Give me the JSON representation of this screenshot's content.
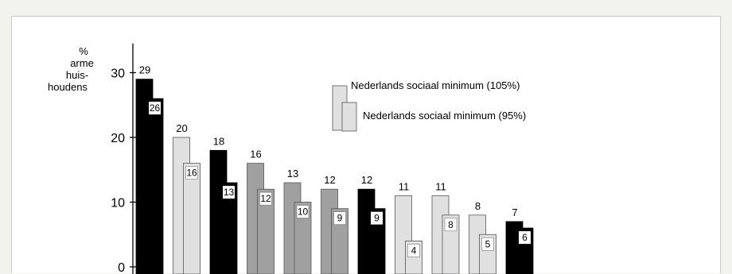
{
  "chart_data": {
    "type": "bar",
    "ylabel_lines": [
      "%",
      "arme",
      "huis-",
      "houdens"
    ],
    "yticks": [
      0,
      10,
      20,
      30
    ],
    "ylim": [
      0,
      35
    ],
    "grid": false,
    "legend_placement": "top-right",
    "series": [
      {
        "name": "Nederlands sociaal minimum (105%)",
        "values": [
          29,
          20,
          18,
          16,
          13,
          12,
          12,
          11,
          11,
          8,
          7
        ]
      },
      {
        "name": "Nederlands sociaal minimum (95%)",
        "values": [
          26,
          16,
          13,
          12,
          10,
          9,
          9,
          4,
          8,
          5,
          6
        ]
      }
    ],
    "group_colors": [
      "#000000",
      "#e0e0e0",
      "#000000",
      "#a0a0a0",
      "#a0a0a0",
      "#a0a0a0",
      "#000000",
      "#e0e0e0",
      "#e0e0e0",
      "#e0e0e0",
      "#000000"
    ],
    "legend_swatch_color": "#e0e0e0"
  }
}
